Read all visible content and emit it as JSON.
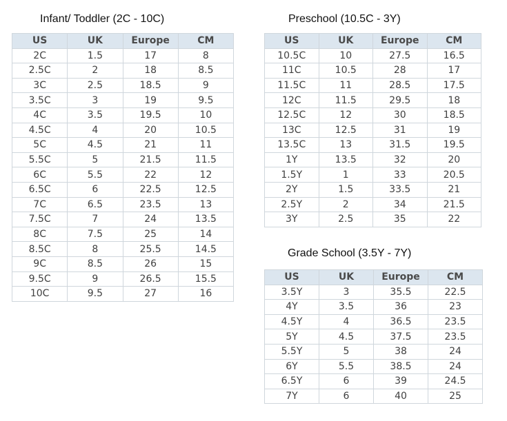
{
  "columns": [
    "US",
    "UK",
    "Europe",
    "CM"
  ],
  "infant": {
    "title": "Infant/ Toddler (2C - 10C)",
    "rows": [
      [
        "2C",
        "1.5",
        "17",
        "8"
      ],
      [
        "2.5C",
        "2",
        "18",
        "8.5"
      ],
      [
        "3C",
        "2.5",
        "18.5",
        "9"
      ],
      [
        "3.5C",
        "3",
        "19",
        "9.5"
      ],
      [
        "4C",
        "3.5",
        "19.5",
        "10"
      ],
      [
        "4.5C",
        "4",
        "20",
        "10.5"
      ],
      [
        "5C",
        "4.5",
        "21",
        "11"
      ],
      [
        "5.5C",
        "5",
        "21.5",
        "11.5"
      ],
      [
        "6C",
        "5.5",
        "22",
        "12"
      ],
      [
        "6.5C",
        "6",
        "22.5",
        "12.5"
      ],
      [
        "7C",
        "6.5",
        "23.5",
        "13"
      ],
      [
        "7.5C",
        "7",
        "24",
        "13.5"
      ],
      [
        "8C",
        "7.5",
        "25",
        "14"
      ],
      [
        "8.5C",
        "8",
        "25.5",
        "14.5"
      ],
      [
        "9C",
        "8.5",
        "26",
        "15"
      ],
      [
        "9.5C",
        "9",
        "26.5",
        "15.5"
      ],
      [
        "10C",
        "9.5",
        "27",
        "16"
      ]
    ]
  },
  "preschool": {
    "title": "Preschool (10.5C - 3Y)",
    "rows": [
      [
        "10.5C",
        "10",
        "27.5",
        "16.5"
      ],
      [
        "11C",
        "10.5",
        "28",
        "17"
      ],
      [
        "11.5C",
        "11",
        "28.5",
        "17.5"
      ],
      [
        "12C",
        "11.5",
        "29.5",
        "18"
      ],
      [
        "12.5C",
        "12",
        "30",
        "18.5"
      ],
      [
        "13C",
        "12.5",
        "31",
        "19"
      ],
      [
        "13.5C",
        "13",
        "31.5",
        "19.5"
      ],
      [
        "1Y",
        "13.5",
        "32",
        "20"
      ],
      [
        "1.5Y",
        "1",
        "33",
        "20.5"
      ],
      [
        "2Y",
        "1.5",
        "33.5",
        "21"
      ],
      [
        "2.5Y",
        "2",
        "34",
        "21.5"
      ],
      [
        "3Y",
        "2.5",
        "35",
        "22"
      ]
    ]
  },
  "grade": {
    "title": "Grade School (3.5Y - 7Y)",
    "rows": [
      [
        "3.5Y",
        "3",
        "35.5",
        "22.5"
      ],
      [
        "4Y",
        "3.5",
        "36",
        "23"
      ],
      [
        "4.5Y",
        "4",
        "36.5",
        "23.5"
      ],
      [
        "5Y",
        "4.5",
        "37.5",
        "23.5"
      ],
      [
        "5.5Y",
        "5",
        "38",
        "24"
      ],
      [
        "6Y",
        "5.5",
        "38.5",
        "24"
      ],
      [
        "6.5Y",
        "6",
        "39",
        "24.5"
      ],
      [
        "7Y",
        "6",
        "40",
        "25"
      ]
    ]
  }
}
